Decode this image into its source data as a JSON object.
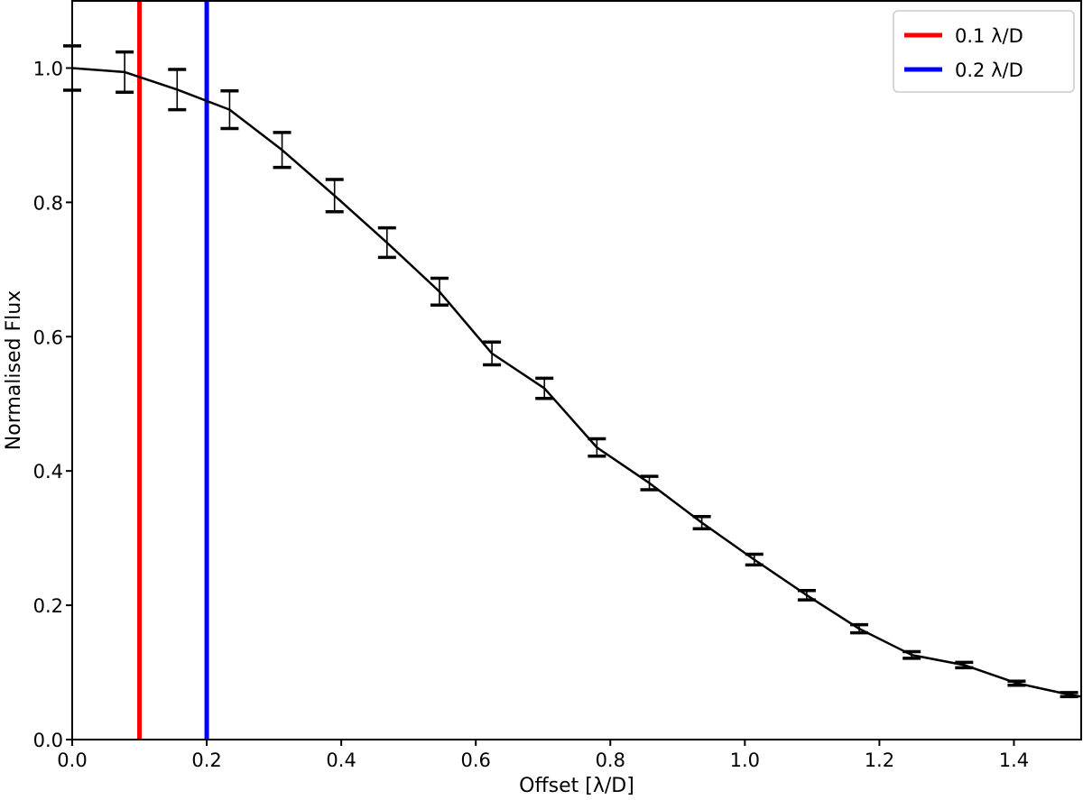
{
  "chart_data": {
    "type": "line",
    "title": "",
    "xlabel": "Offset [λ/D]",
    "ylabel": "Normalised Flux",
    "xlim": [
      0.0,
      1.5
    ],
    "ylim": [
      0.0,
      1.1
    ],
    "grid": false,
    "legend_position": "top-right",
    "x_ticks": [
      0.0,
      0.2,
      0.4,
      0.6,
      0.8,
      1.0,
      1.2,
      1.4
    ],
    "x_tick_labels": [
      "0.0",
      "0.2",
      "0.4",
      "0.6",
      "0.8",
      "1.0",
      "1.2",
      "1.4"
    ],
    "y_ticks": [
      0.0,
      0.2,
      0.4,
      0.6,
      0.8,
      1.0
    ],
    "y_tick_labels": [
      "0.0",
      "0.2",
      "0.4",
      "0.6",
      "0.8",
      "1.0"
    ],
    "series": [
      {
        "color": "#000000",
        "x": [
          0.0,
          0.078,
          0.156,
          0.234,
          0.312,
          0.39,
          0.468,
          0.546,
          0.624,
          0.702,
          0.78,
          0.858,
          0.936,
          1.014,
          1.092,
          1.17,
          1.248,
          1.326,
          1.404,
          1.482,
          1.5
        ],
        "y": [
          1.0,
          0.994,
          0.968,
          0.938,
          0.878,
          0.81,
          0.74,
          0.667,
          0.575,
          0.523,
          0.435,
          0.382,
          0.323,
          0.268,
          0.215,
          0.165,
          0.126,
          0.111,
          0.084,
          0.067,
          0.064
        ],
        "error": [
          0.033,
          0.03,
          0.03,
          0.028,
          0.026,
          0.024,
          0.022,
          0.02,
          0.017,
          0.015,
          0.013,
          0.01,
          0.009,
          0.008,
          0.007,
          0.006,
          0.005,
          0.004,
          0.003,
          0.003,
          null
        ]
      }
    ],
    "vertical_lines": [
      {
        "x": 0.1,
        "color": "#ff0000",
        "label": "0.1 λ/D"
      },
      {
        "x": 0.2,
        "color": "#0000ff",
        "label": "0.2 λ/D"
      }
    ]
  }
}
